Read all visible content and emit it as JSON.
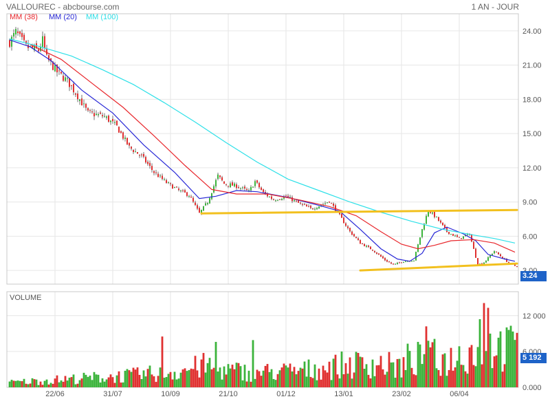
{
  "header": {
    "title": "VALLOUREC - abcbourse.com",
    "period": "1 AN - JOUR"
  },
  "legend": [
    {
      "label": "MM (38)",
      "color": "#e8262b"
    },
    {
      "label": "MM (20)",
      "color": "#2727d6"
    },
    {
      "label": "MM (100)",
      "color": "#2de0e8"
    }
  ],
  "last_price_tag": "3.24",
  "volume_title": "VOLUME",
  "last_volume_tag": "5 192",
  "colors": {
    "up": "#3bb33b",
    "down": "#e03030",
    "trend": "#f2c01e",
    "tag": "#1e63c8"
  },
  "chart_data": [
    {
      "type": "candlestick",
      "title": "VALLOUREC",
      "x_ticks": [
        "22/06",
        "31/07",
        "10/09",
        "21/10",
        "01/12",
        "13/01",
        "23/02",
        "06/04"
      ],
      "y_ticks": [
        "24.00",
        "21.00",
        "18.00",
        "15.00",
        "12.00",
        "9.00",
        "6.00",
        "3.00"
      ],
      "ylim": [
        1.8,
        25.5
      ],
      "close_path": [
        [
          0,
          23.0
        ],
        [
          3,
          23.9
        ],
        [
          8,
          22.6
        ],
        [
          14,
          22.3
        ],
        [
          16,
          23.2
        ],
        [
          18,
          21.6
        ],
        [
          23,
          20.4
        ],
        [
          28,
          19.6
        ],
        [
          33,
          18.3
        ],
        [
          38,
          16.8
        ],
        [
          46,
          16.5
        ],
        [
          52,
          15.6
        ],
        [
          58,
          13.8
        ],
        [
          64,
          13.0
        ],
        [
          70,
          11.6
        ],
        [
          76,
          10.7
        ],
        [
          82,
          10.0
        ],
        [
          87,
          9.6
        ],
        [
          92,
          8.0
        ],
        [
          96,
          9.0
        ],
        [
          99,
          10.4
        ],
        [
          101,
          11.3
        ],
        [
          104,
          10.6
        ],
        [
          110,
          10.4
        ],
        [
          116,
          9.9
        ],
        [
          119,
          10.8
        ],
        [
          123,
          9.8
        ],
        [
          128,
          9.2
        ],
        [
          134,
          9.5
        ],
        [
          140,
          8.9
        ],
        [
          146,
          8.4
        ],
        [
          152,
          8.8
        ],
        [
          155,
          9.1
        ],
        [
          160,
          7.8
        ],
        [
          165,
          6.4
        ],
        [
          170,
          5.4
        ],
        [
          176,
          4.8
        ],
        [
          182,
          3.9
        ],
        [
          186,
          3.5
        ],
        [
          191,
          3.8
        ],
        [
          196,
          3.9
        ],
        [
          200,
          6.6
        ],
        [
          203,
          8.3
        ],
        [
          207,
          7.6
        ],
        [
          212,
          6.4
        ],
        [
          218,
          5.8
        ],
        [
          223,
          6.2
        ],
        [
          227,
          3.5
        ],
        [
          230,
          3.7
        ],
        [
          235,
          4.7
        ],
        [
          241,
          3.8
        ],
        [
          245,
          3.4
        ]
      ],
      "series": [
        {
          "name": "MM (20)",
          "color": "#2727d6",
          "points": [
            [
              0,
              23.2
            ],
            [
              10,
              22.6
            ],
            [
              20,
              21.4
            ],
            [
              35,
              18.8
            ],
            [
              50,
              16.8
            ],
            [
              65,
              14.0
            ],
            [
              80,
              11.6
            ],
            [
              92,
              9.3
            ],
            [
              100,
              9.5
            ],
            [
              110,
              10.0
            ],
            [
              120,
              9.9
            ],
            [
              135,
              9.4
            ],
            [
              150,
              8.7
            ],
            [
              160,
              8.2
            ],
            [
              170,
              6.6
            ],
            [
              180,
              4.9
            ],
            [
              188,
              4.0
            ],
            [
              194,
              3.8
            ],
            [
              200,
              4.5
            ],
            [
              206,
              6.3
            ],
            [
              212,
              6.8
            ],
            [
              220,
              6.2
            ],
            [
              226,
              5.6
            ],
            [
              232,
              4.4
            ],
            [
              240,
              4.0
            ],
            [
              245,
              3.8
            ]
          ]
        },
        {
          "name": "MM (38)",
          "color": "#e8262b",
          "points": [
            [
              10,
              22.8
            ],
            [
              25,
              21.5
            ],
            [
              40,
              19.4
            ],
            [
              55,
              17.3
            ],
            [
              70,
              14.8
            ],
            [
              85,
              12.2
            ],
            [
              98,
              10.1
            ],
            [
              110,
              9.7
            ],
            [
              125,
              9.7
            ],
            [
              140,
              9.2
            ],
            [
              155,
              8.6
            ],
            [
              168,
              7.8
            ],
            [
              180,
              6.4
            ],
            [
              190,
              5.3
            ],
            [
              198,
              4.9
            ],
            [
              206,
              5.2
            ],
            [
              214,
              5.6
            ],
            [
              225,
              5.7
            ],
            [
              235,
              5.4
            ],
            [
              245,
              4.6
            ]
          ]
        },
        {
          "name": "MM (100)",
          "color": "#2de0e8",
          "points": [
            [
              0,
              23.3
            ],
            [
              15,
              22.6
            ],
            [
              30,
              21.8
            ],
            [
              45,
              20.6
            ],
            [
              60,
              19.3
            ],
            [
              75,
              17.7
            ],
            [
              90,
              16.0
            ],
            [
              105,
              14.2
            ],
            [
              120,
              12.5
            ],
            [
              135,
              11.0
            ],
            [
              150,
              10.0
            ],
            [
              165,
              9.0
            ],
            [
              180,
              8.1
            ],
            [
              195,
              7.3
            ],
            [
              210,
              6.6
            ],
            [
              225,
              6.1
            ],
            [
              235,
              5.8
            ],
            [
              245,
              5.4
            ]
          ]
        }
      ],
      "trendlines": [
        {
          "from": [
            93,
            8.0
          ],
          "to": [
            246,
            8.3
          ]
        },
        {
          "from": [
            170,
            3.0
          ],
          "to": [
            246,
            3.6
          ]
        }
      ]
    },
    {
      "type": "bar",
      "title": "VOLUME",
      "y_ticks": [
        "12 000",
        "6 000",
        "0.000"
      ],
      "ylim": [
        0,
        16000
      ],
      "profile": [
        [
          0,
          800
        ],
        [
          30,
          1400
        ],
        [
          60,
          2000
        ],
        [
          80,
          2600
        ],
        [
          95,
          3600
        ],
        [
          105,
          2800
        ],
        [
          120,
          2500
        ],
        [
          140,
          2700
        ],
        [
          160,
          3600
        ],
        [
          175,
          4000
        ],
        [
          190,
          3400
        ],
        [
          200,
          5000
        ],
        [
          210,
          4400
        ],
        [
          222,
          5800
        ],
        [
          232,
          7200
        ],
        [
          240,
          6600
        ],
        [
          246,
          6400
        ]
      ],
      "spikes": [
        [
          74,
          8500
        ],
        [
          100,
          7600
        ],
        [
          118,
          7900
        ],
        [
          193,
          7300
        ],
        [
          202,
          10200
        ],
        [
          206,
          8100
        ],
        [
          214,
          6600
        ],
        [
          228,
          11400
        ],
        [
          230,
          14100
        ],
        [
          232,
          13300
        ],
        [
          237,
          8300
        ],
        [
          242,
          9600
        ],
        [
          243,
          10300
        ]
      ]
    }
  ]
}
